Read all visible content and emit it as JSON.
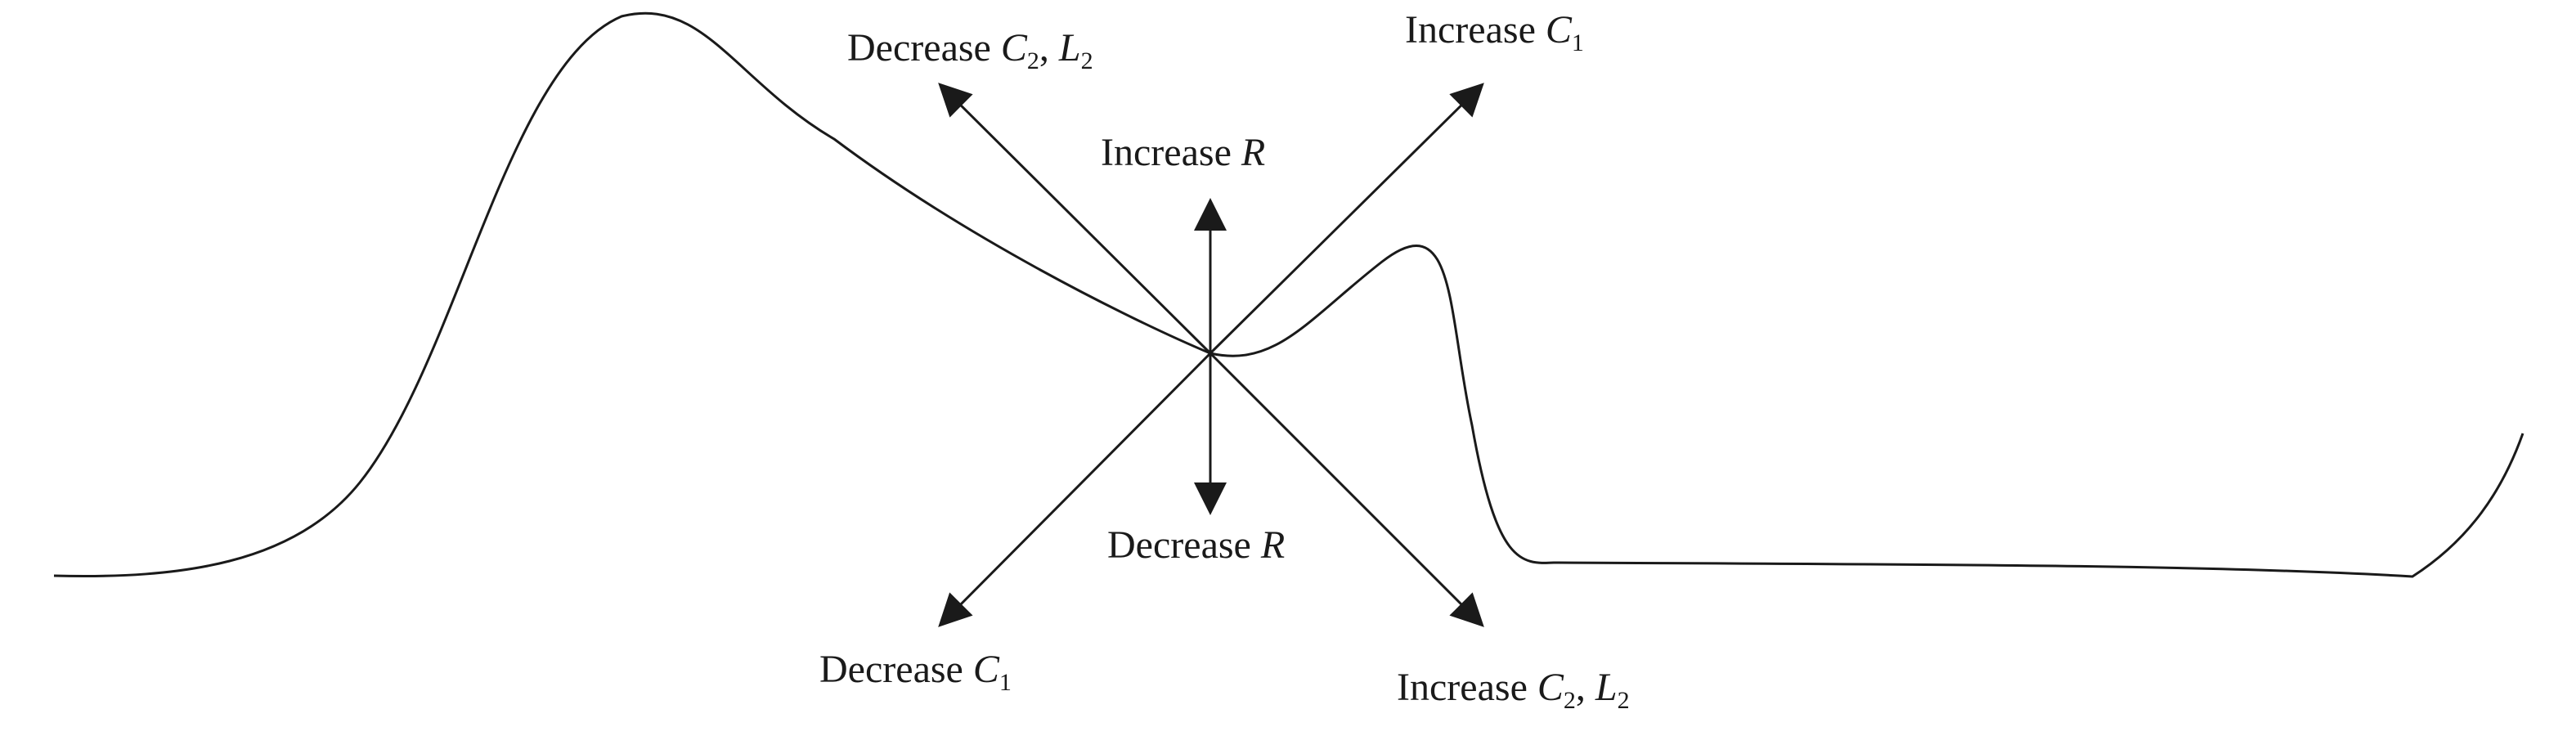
{
  "labels": {
    "decrease_c2_l2": {
      "prefix": "Decrease ",
      "v1": "C",
      "s1": "2",
      "sep": ", ",
      "v2": "L",
      "s2": "2"
    },
    "increase_c1": {
      "prefix": "Increase ",
      "v1": "C",
      "s1": "1"
    },
    "increase_r": {
      "prefix": "Increase ",
      "v1": "R"
    },
    "decrease_r": {
      "prefix": "Decrease ",
      "v1": "R"
    },
    "decrease_c1": {
      "prefix": "Decrease ",
      "v1": "C",
      "s1": "1"
    },
    "increase_c2_l2": {
      "prefix": "Increase ",
      "v1": "C",
      "s1": "2",
      "sep": ", ",
      "v2": "L",
      "s2": "2"
    }
  },
  "colors": {
    "stroke": "#1a1a1a",
    "background": "#ffffff"
  }
}
